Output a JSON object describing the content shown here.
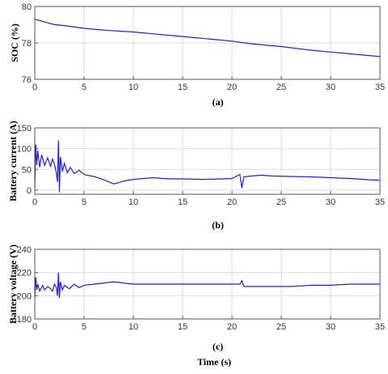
{
  "figure": {
    "xlabel": "Time (s)",
    "line_color": "#1f1fd6",
    "grid_color": "#d9d9d9"
  },
  "chart_data": [
    {
      "type": "line",
      "caption": "(a)",
      "ylabel": "SOC (%)",
      "xlim": [
        0,
        35
      ],
      "ylim": [
        76,
        80
      ],
      "xticks": [
        0,
        5,
        10,
        15,
        20,
        25,
        30,
        35
      ],
      "yticks": [
        76,
        78,
        80
      ],
      "grid": true,
      "series": [
        {
          "x": [
            0,
            1,
            2,
            3,
            5,
            7,
            10,
            12,
            15,
            18,
            20,
            22,
            25,
            28,
            30,
            33,
            35
          ],
          "y": [
            79.3,
            79.15,
            79.0,
            78.95,
            78.8,
            78.7,
            78.6,
            78.5,
            78.35,
            78.2,
            78.1,
            77.95,
            77.8,
            77.6,
            77.5,
            77.35,
            77.25
          ]
        }
      ]
    },
    {
      "type": "line",
      "caption": "(b)",
      "ylabel": "Battery current (A)",
      "xlim": [
        0,
        35
      ],
      "ylim": [
        -10,
        150
      ],
      "xticks": [
        0,
        5,
        10,
        15,
        20,
        25,
        30,
        35
      ],
      "yticks": [
        0,
        50,
        100,
        150
      ],
      "grid": true,
      "series": [
        {
          "x": [
            0,
            0.1,
            0.2,
            0.3,
            0.5,
            0.7,
            1.0,
            1.3,
            1.6,
            1.8,
            2.0,
            2.2,
            2.3,
            2.4,
            2.5,
            2.6,
            2.8,
            3.0,
            3.3,
            3.6,
            4.0,
            4.5,
            5.0,
            5.5,
            6.0,
            7.0,
            8.0,
            8.5,
            9.0,
            10.0,
            11.0,
            12.0,
            13.0,
            14.0,
            15.0,
            17.0,
            19.0,
            20.0,
            20.8,
            21.0,
            21.2,
            21.5,
            22.0,
            23.0,
            24.0,
            26.0,
            28.0,
            30.0,
            32.0,
            34.0,
            35.0
          ],
          "y": [
            5,
            110,
            60,
            95,
            55,
            85,
            60,
            78,
            58,
            75,
            62,
            40,
            20,
            120,
            -5,
            80,
            45,
            65,
            42,
            55,
            40,
            48,
            38,
            35,
            33,
            25,
            15,
            18,
            22,
            26,
            28,
            30,
            28,
            27,
            27,
            26,
            27,
            28,
            38,
            5,
            32,
            33,
            34,
            36,
            34,
            33,
            32,
            30,
            28,
            25,
            24
          ]
        }
      ]
    },
    {
      "type": "line",
      "caption": "(c)",
      "ylabel": "Battery voltage (V)",
      "xlim": [
        0,
        35
      ],
      "ylim": [
        180,
        240
      ],
      "xticks": [
        0,
        5,
        10,
        15,
        20,
        25,
        30,
        35
      ],
      "yticks": [
        180,
        200,
        220,
        240
      ],
      "grid": true,
      "series": [
        {
          "x": [
            0,
            0.1,
            0.2,
            0.3,
            0.5,
            0.8,
            1.0,
            1.3,
            1.6,
            1.8,
            2.0,
            2.2,
            2.3,
            2.4,
            2.5,
            2.6,
            2.8,
            3.0,
            3.5,
            4.0,
            4.5,
            5.0,
            6.0,
            7.0,
            8.0,
            9.0,
            10.0,
            12.0,
            15.0,
            18.0,
            20.0,
            20.8,
            21.0,
            21.2,
            22.0,
            24.0,
            26.0,
            28.0,
            30.0,
            32.0,
            35.0
          ],
          "y": [
            198,
            216,
            205,
            210,
            204,
            209,
            205,
            208,
            206,
            204,
            210,
            207,
            200,
            220,
            198,
            212,
            205,
            209,
            206,
            210,
            207,
            209,
            210,
            211,
            212,
            211,
            210,
            210,
            210,
            210,
            210,
            210,
            213,
            208,
            208,
            208,
            208,
            209,
            209,
            210,
            210
          ]
        }
      ]
    }
  ]
}
